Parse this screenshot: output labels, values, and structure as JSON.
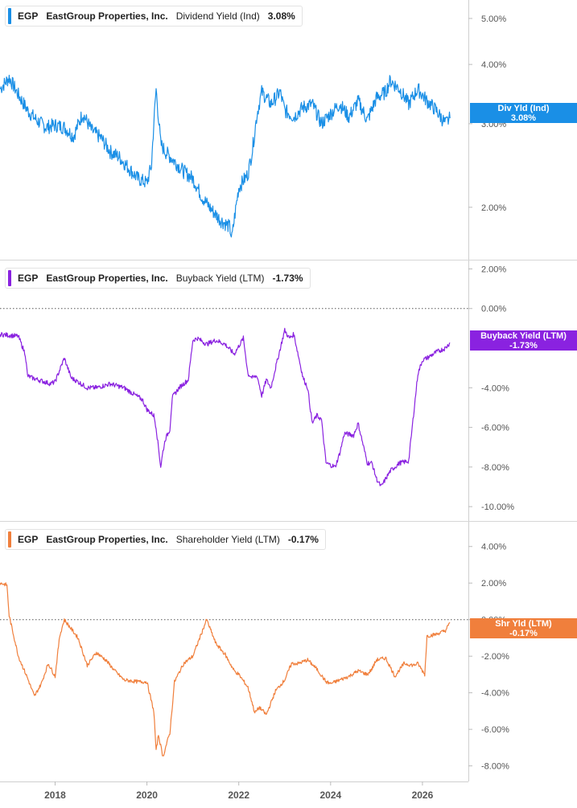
{
  "chart_data": [
    {
      "type": "line",
      "ticker": "EGP",
      "company": "EastGroup Properties, Inc.",
      "metric": "Dividend Yield (Ind)",
      "current_value": "3.08%",
      "tag_label": "Div Yld (Ind)",
      "tag_value": "3.08%",
      "color": "#1a8fe6",
      "scale": "log",
      "y_ticks": [
        "5.00%",
        "4.00%",
        "3.00%",
        "2.00%"
      ],
      "y_tick_values": [
        5,
        4,
        3,
        2
      ],
      "ylim": [
        1.6,
        5.3
      ],
      "x": [
        2016.8,
        2017.0,
        2017.2,
        2017.4,
        2017.6,
        2017.8,
        2018.0,
        2018.2,
        2018.4,
        2018.6,
        2018.8,
        2019.0,
        2019.2,
        2019.4,
        2019.6,
        2019.8,
        2020.0,
        2020.1,
        2020.2,
        2020.25,
        2020.3,
        2020.4,
        2020.6,
        2020.8,
        2021.0,
        2021.2,
        2021.4,
        2021.6,
        2021.8,
        2021.85,
        2022.0,
        2022.2,
        2022.3,
        2022.4,
        2022.5,
        2022.7,
        2022.9,
        2023.0,
        2023.2,
        2023.4,
        2023.6,
        2023.8,
        2024.0,
        2024.2,
        2024.4,
        2024.6,
        2024.8,
        2025.0,
        2025.2,
        2025.3,
        2025.5,
        2025.7,
        2025.9,
        2026.1,
        2026.3,
        2026.5,
        2026.6
      ],
      "values": [
        3.55,
        3.75,
        3.45,
        3.2,
        3.05,
        2.95,
        2.98,
        2.95,
        2.82,
        3.15,
        2.9,
        2.8,
        2.62,
        2.55,
        2.42,
        2.3,
        2.25,
        2.45,
        3.55,
        3.1,
        2.72,
        2.62,
        2.5,
        2.38,
        2.3,
        2.1,
        1.98,
        1.88,
        1.82,
        1.72,
        2.2,
        2.35,
        2.65,
        3.15,
        3.5,
        3.3,
        3.5,
        3.2,
        3.1,
        3.25,
        3.3,
        3.0,
        3.15,
        3.3,
        3.1,
        3.35,
        3.05,
        3.4,
        3.5,
        3.7,
        3.55,
        3.3,
        3.55,
        3.35,
        3.2,
        3.0,
        3.08
      ]
    },
    {
      "type": "line",
      "ticker": "EGP",
      "company": "EastGroup Properties, Inc.",
      "metric": "Buyback Yield (LTM)",
      "current_value": "-1.73%",
      "tag_label": "Buyback Yield (LTM)",
      "tag_value": "-1.73%",
      "color": "#8a22e0",
      "y_ticks": [
        "2.00%",
        "0.00%",
        "-4.00%",
        "-6.00%",
        "-8.00%",
        "-10.00%"
      ],
      "y_tick_values": [
        2,
        0,
        -4,
        -6,
        -8,
        -10
      ],
      "ylim": [
        -10.4,
        2.1
      ],
      "zero_line": true,
      "x": [
        2016.8,
        2017.2,
        2017.35,
        2017.4,
        2017.5,
        2017.9,
        2018.0,
        2018.2,
        2018.35,
        2018.5,
        2018.7,
        2018.9,
        2019.2,
        2019.5,
        2019.7,
        2019.9,
        2020.0,
        2020.15,
        2020.2,
        2020.3,
        2020.35,
        2020.4,
        2020.5,
        2020.55,
        2020.7,
        2020.9,
        2021.0,
        2021.1,
        2021.3,
        2021.5,
        2021.7,
        2021.9,
        2022.1,
        2022.2,
        2022.3,
        2022.4,
        2022.5,
        2022.6,
        2022.7,
        2022.8,
        2023.0,
        2023.1,
        2023.2,
        2023.4,
        2023.5,
        2023.6,
        2023.7,
        2023.8,
        2023.9,
        2024.0,
        2024.1,
        2024.2,
        2024.3,
        2024.5,
        2024.6,
        2024.8,
        2024.9,
        2025.0,
        2025.1,
        2025.2,
        2025.3,
        2025.5,
        2025.7,
        2025.9,
        2026.0,
        2026.1,
        2026.3,
        2026.5,
        2026.6
      ],
      "values": [
        -1.3,
        -1.4,
        -2.3,
        -3.4,
        -3.5,
        -3.8,
        -3.7,
        -2.5,
        -3.5,
        -3.7,
        -4.0,
        -4.0,
        -3.8,
        -4.0,
        -4.3,
        -4.6,
        -5.1,
        -5.4,
        -6.0,
        -8.0,
        -7.2,
        -6.6,
        -6.1,
        -4.5,
        -4.0,
        -3.6,
        -1.6,
        -1.5,
        -1.8,
        -1.6,
        -1.8,
        -2.3,
        -1.5,
        -3.3,
        -3.5,
        -3.4,
        -4.4,
        -3.6,
        -4.0,
        -3.0,
        -1.1,
        -1.5,
        -1.3,
        -3.5,
        -4.0,
        -5.8,
        -5.4,
        -5.6,
        -7.8,
        -7.9,
        -8.0,
        -7.3,
        -6.3,
        -6.4,
        -5.8,
        -7.8,
        -7.8,
        -8.6,
        -9.0,
        -8.6,
        -8.2,
        -7.8,
        -7.7,
        -3.3,
        -2.6,
        -2.5,
        -2.2,
        -2.0,
        -1.73
      ]
    },
    {
      "type": "line",
      "ticker": "EGP",
      "company": "EastGroup Properties, Inc.",
      "metric": "Shareholder Yield (LTM)",
      "current_value": "-0.17%",
      "tag_label": "Shr Yld (LTM)",
      "tag_value": "-0.17%",
      "color": "#f07f3c",
      "y_ticks": [
        "4.00%",
        "2.00%",
        "0.00%",
        "-2.00%",
        "-4.00%",
        "-6.00%",
        "-8.00%"
      ],
      "y_tick_values": [
        4,
        2,
        0,
        -2,
        -4,
        -6,
        -8
      ],
      "ylim": [
        -8.5,
        5.0
      ],
      "zero_line": true,
      "x": [
        2016.8,
        2016.95,
        2017.0,
        2017.2,
        2017.25,
        2017.4,
        2017.55,
        2017.7,
        2017.85,
        2018.0,
        2018.1,
        2018.2,
        2018.5,
        2018.7,
        2018.9,
        2019.1,
        2019.3,
        2019.5,
        2019.8,
        2020.0,
        2020.1,
        2020.15,
        2020.2,
        2020.25,
        2020.35,
        2020.45,
        2020.5,
        2020.6,
        2020.8,
        2021.0,
        2021.15,
        2021.3,
        2021.5,
        2021.7,
        2021.9,
        2022.0,
        2022.2,
        2022.35,
        2022.45,
        2022.6,
        2022.8,
        2023.0,
        2023.15,
        2023.3,
        2023.5,
        2023.7,
        2023.9,
        2024.0,
        2024.2,
        2024.4,
        2024.6,
        2024.8,
        2024.9,
        2025.0,
        2025.2,
        2025.4,
        2025.6,
        2025.8,
        2025.9,
        2026.05,
        2026.1,
        2026.3,
        2026.5,
        2026.6
      ],
      "values": [
        2.0,
        1.9,
        0.2,
        -2.0,
        -2.3,
        -3.2,
        -4.2,
        -3.5,
        -2.4,
        -3.1,
        -0.9,
        0.0,
        -1.0,
        -2.5,
        -1.8,
        -2.2,
        -2.8,
        -3.3,
        -3.4,
        -3.4,
        -4.5,
        -5.0,
        -7.2,
        -6.3,
        -7.5,
        -6.6,
        -6.2,
        -3.4,
        -2.4,
        -2.0,
        -1.0,
        0.0,
        -1.3,
        -1.9,
        -2.8,
        -3.0,
        -3.7,
        -5.1,
        -4.8,
        -5.2,
        -3.9,
        -3.3,
        -2.4,
        -2.4,
        -2.2,
        -2.7,
        -3.4,
        -3.5,
        -3.3,
        -3.1,
        -2.8,
        -3.0,
        -2.7,
        -2.2,
        -2.1,
        -3.1,
        -2.4,
        -2.5,
        -2.4,
        -3.0,
        -0.9,
        -0.8,
        -0.6,
        -0.17
      ]
    }
  ],
  "x_axis": {
    "labels": [
      "2018",
      "2020",
      "2022",
      "2024",
      "2026"
    ],
    "label_values": [
      2018,
      2020,
      2022,
      2024,
      2026
    ],
    "xlim": [
      2016.8,
      2027.0
    ]
  }
}
